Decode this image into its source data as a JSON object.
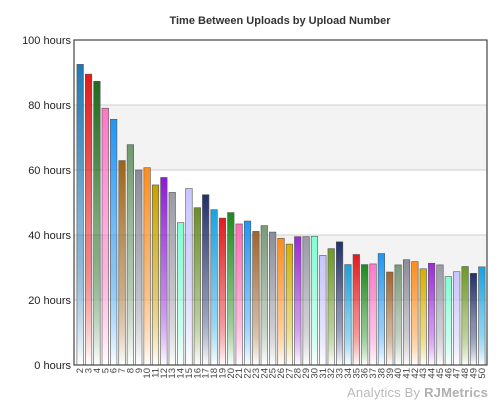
{
  "chart_data": {
    "type": "bar",
    "title": "Time Between Uploads by Upload Number",
    "xlabel": "",
    "ylabel": "",
    "ylim": [
      0,
      100
    ],
    "y_ticks": [
      "0 hours",
      "20 hours",
      "40 hours",
      "60 hours",
      "80 hours",
      "100 hours"
    ],
    "y_tick_values": [
      0,
      20,
      40,
      60,
      80,
      100
    ],
    "grid": true,
    "categories": [
      "2",
      "3",
      "4",
      "5",
      "6",
      "7",
      "8",
      "9",
      "10",
      "11",
      "12",
      "13",
      "14",
      "15",
      "16",
      "17",
      "18",
      "19",
      "20",
      "21",
      "22",
      "23",
      "24",
      "25",
      "26",
      "27",
      "28",
      "29",
      "30",
      "31",
      "32",
      "33",
      "34",
      "35",
      "36",
      "37",
      "38",
      "39",
      "40",
      "41",
      "42",
      "43",
      "44",
      "45",
      "46",
      "47",
      "48",
      "49",
      "50"
    ],
    "values": [
      92.5,
      89.5,
      87.3,
      79,
      75.6,
      62.9,
      67.8,
      60,
      60.7,
      55.4,
      57.7,
      53.1,
      43.8,
      54.3,
      48.4,
      52.4,
      47.8,
      45.2,
      46.9,
      43.4,
      44.3,
      41.1,
      42.9,
      40.9,
      39,
      37.2,
      39.5,
      39.5,
      39.6,
      33.7,
      35.8,
      37.9,
      30.9,
      34,
      30.9,
      31.1,
      34.3,
      28.6,
      30.8,
      32.4,
      31.8,
      29.6,
      31.3,
      30.8,
      27.2,
      28.7,
      30.3,
      28.2,
      30.2
    ],
    "colors": [
      "#1f78b4",
      "#e31a1c",
      "#1d6b1d",
      "#ff77c8",
      "#2196f3",
      "#9c6416",
      "#6e9a6e",
      "#8a8a99",
      "#ff8c1a",
      "#c8a000",
      "#8c1ad9",
      "#9a9aa6",
      "#7fffd4",
      "#c6c6ff",
      "#6b8e23",
      "#20306b",
      "#17a2e0",
      "#e31a1c",
      "#1d8a1d",
      "#ff69b4",
      "#2196f3",
      "#a0652a",
      "#7a9a7a",
      "#8c8c99",
      "#ff8c1a",
      "#d4b000",
      "#9a2ad9",
      "#9a9aa6",
      "#7fffd4",
      "#c6c6ff",
      "#6b9a23",
      "#20306b",
      "#17a2e0",
      "#e31a1c",
      "#1d8a1d",
      "#ff77c8",
      "#2196f3",
      "#a0652a",
      "#7a9a7a",
      "#8c8c99",
      "#ff8c1a",
      "#d4b000",
      "#9a2ad9",
      "#9a9aa6",
      "#7fffd4",
      "#c6c6ff",
      "#6b9a23",
      "#20306b",
      "#17a2e0"
    ]
  },
  "watermark": {
    "prefix": "Analytics By ",
    "brand": "RJMetrics"
  }
}
